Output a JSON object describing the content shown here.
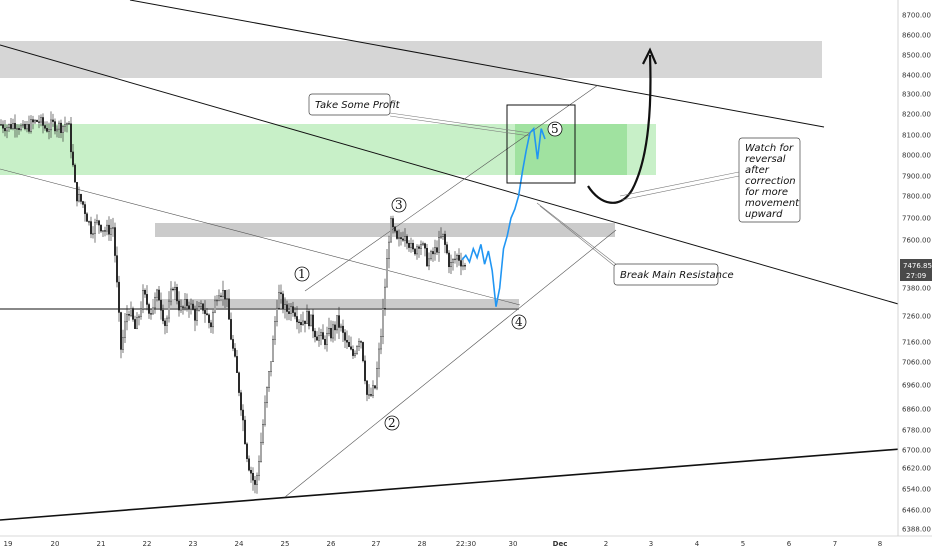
{
  "chart_data": {
    "type": "candlestick",
    "y_axis": {
      "ticks": [
        8700,
        8600,
        8500,
        8400,
        8300,
        8200,
        8100,
        8000,
        7900,
        7800,
        7700,
        7600,
        7500,
        7380,
        7260,
        7160,
        7060,
        6960,
        6860,
        6780,
        6700,
        6620,
        6540,
        6460,
        6388
      ],
      "tick_labels": [
        "8700.00",
        "8600.00",
        "8500.00",
        "8400.00",
        "8300.00",
        "8200.00",
        "8100.00",
        "8000.00",
        "7900.00",
        "7800.00",
        "7700.00",
        "7600.00",
        "7500.00",
        "7380.00",
        "7260.00",
        "7160.00",
        "7060.00",
        "6960.00",
        "6860.00",
        "6780.00",
        "6700.00",
        "6620.00",
        "6540.00",
        "6460.00",
        "6388.00"
      ],
      "current_price_label": "7476.85",
      "countdown_label": "27:09"
    },
    "x_axis": {
      "tick_labels": [
        "19",
        "20",
        "21",
        "22",
        "23",
        "24",
        "25",
        "26",
        "27",
        "28",
        "22:30",
        "30",
        "Dec",
        "2",
        "3",
        "4",
        "5",
        "6",
        "7",
        "8"
      ]
    },
    "annotations": {
      "take_profit": "Take Some Profit",
      "break_resistance": "Break Main Resistance",
      "watch_reversal": [
        "Watch for",
        "reversal",
        "after",
        "correction",
        "for more",
        "movement",
        "upward"
      ]
    },
    "wave_labels": [
      "1",
      "2",
      "3",
      "4",
      "5"
    ],
    "ohlc_anchor_closes": [
      8150,
      8140,
      8160,
      8120,
      8150,
      8170,
      8130,
      8150,
      8140,
      8160,
      7810,
      7760,
      7650,
      7680,
      7640,
      7660,
      7120,
      7300,
      7200,
      7350,
      7280,
      7360,
      7220,
      7400,
      7280,
      7320,
      7260,
      7300,
      7220,
      7380,
      7350,
      7120,
      6900,
      6650,
      6540,
      6800,
      7050,
      7360,
      7280,
      7300,
      7240,
      7260,
      7200,
      7160,
      7190,
      7240,
      7160,
      7090,
      7200,
      6890,
      6950,
      7260,
      7680,
      7580,
      7640,
      7540,
      7600,
      7500,
      7550,
      7620,
      7480,
      7530,
      7476
    ],
    "projection_path_values": [
      7510,
      7530,
      7500,
      7560,
      7520,
      7580,
      7490,
      7550,
      7460,
      7300,
      7380,
      7560,
      7620,
      7700,
      7740,
      7800,
      7920,
      8020,
      8110,
      8130,
      7980,
      8130,
      8080
    ],
    "colors": {
      "candle": "#222222",
      "projection": "#2196f3",
      "green_zone": "#9be39b",
      "gray_zone": "#c8c8c8",
      "trendline": "#111111"
    }
  }
}
